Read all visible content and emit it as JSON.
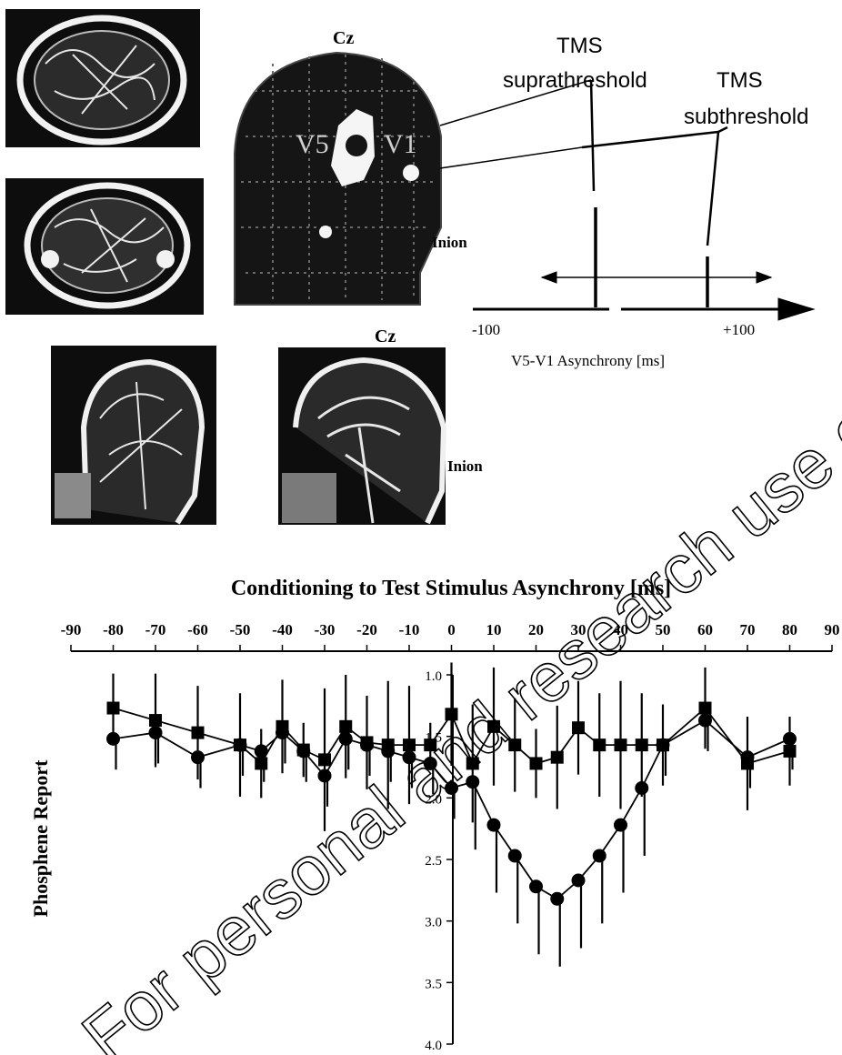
{
  "figure": {
    "head_labels": {
      "cz_top": "Cz",
      "v5": "V5",
      "v1": "V1",
      "inion_top": "Inion",
      "cz_bottom": "Cz",
      "inion_bottom": "Inion"
    },
    "schematic": {
      "supra_line1": "TMS",
      "supra_line2": "suprathreshold",
      "sub_line1": "TMS",
      "sub_line2": "subthreshold",
      "tick_left": "-100",
      "tick_right": "+100",
      "axis_label": "V5-V1 Asynchrony [ms]"
    },
    "watermark": "For personal and research use only"
  },
  "chart_data": {
    "type": "line",
    "title": "Conditioning to Test Stimulus Asynchrony [ms]",
    "xlabel": "Conditioning to Test Stimulus Asynchrony [ms]",
    "ylabel": "Phosphene Report",
    "x_ticks": [
      "-90",
      "-80",
      "-70",
      "-60",
      "-50",
      "-40",
      "-30",
      "-20",
      "-10",
      "0",
      "10",
      "20",
      "30",
      "40",
      "50",
      "60",
      "70",
      "80",
      "90"
    ],
    "y_ticks": [
      "1.0",
      "1.5",
      "2.0",
      "2.5",
      "3.0",
      "3.5",
      "4.0"
    ],
    "y_tick_values": [
      1.0,
      1.5,
      2.0,
      2.5,
      3.0,
      3.5,
      4.0
    ],
    "xlim": [
      -90,
      90
    ],
    "ylim": [
      1.0,
      4.0
    ],
    "y_inverted": true,
    "series": [
      {
        "marker": "square",
        "x": [
          -80,
          -70,
          -60,
          -50,
          -45,
          -40,
          -35,
          -30,
          -25,
          -20,
          -15,
          -10,
          -5,
          0,
          5,
          10,
          15,
          20,
          25,
          30,
          35,
          40,
          45,
          50,
          60,
          70,
          80
        ],
        "y": [
          1.27,
          1.37,
          1.47,
          1.57,
          1.72,
          1.42,
          1.61,
          1.69,
          1.42,
          1.55,
          1.57,
          1.57,
          1.57,
          1.32,
          1.72,
          1.42,
          1.57,
          1.72,
          1.67,
          1.43,
          1.57,
          1.57,
          1.57,
          1.57,
          1.27,
          1.72,
          1.62
        ],
        "err": [
          0.28,
          0.38,
          0.38,
          0.42,
          0.28,
          0.38,
          0.22,
          0.58,
          0.42,
          0.38,
          0.52,
          0.48,
          0.18,
          0.42,
          0.48,
          0.48,
          0.38,
          0.28,
          0.42,
          0.38,
          0.42,
          0.52,
          0.42,
          0.33,
          0.33,
          0.38,
          0.28
        ]
      },
      {
        "marker": "circle",
        "x": [
          -80,
          -70,
          -60,
          -50,
          -45,
          -40,
          -35,
          -30,
          -25,
          -20,
          -15,
          -10,
          -5,
          0,
          5,
          10,
          15,
          20,
          25,
          30,
          35,
          40,
          45,
          50,
          60,
          70,
          80
        ],
        "y": [
          1.52,
          1.47,
          1.67,
          1.57,
          1.62,
          1.47,
          1.62,
          1.82,
          1.52,
          1.57,
          1.62,
          1.67,
          1.72,
          1.92,
          1.87,
          2.22,
          2.47,
          2.72,
          2.82,
          2.67,
          2.47,
          2.22,
          1.92,
          1.57,
          1.37,
          1.67,
          1.52
        ]
      }
    ]
  }
}
